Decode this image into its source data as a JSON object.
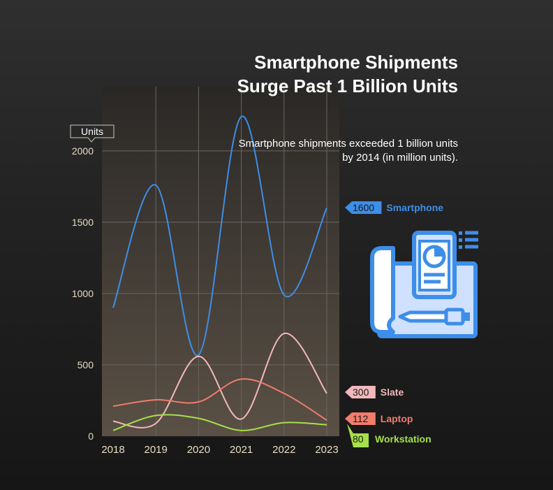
{
  "title": "Smartphone Shipments Surge Past 1 Billion Units",
  "subtitle": "Smartphone shipments exceeded 1 billion units by 2014 (in million units).",
  "illustration_icon": "smartphone-blueprint-icon",
  "colors": {
    "Smartphone": "#3d8ee8",
    "Slate": "#f2b8bb",
    "Laptop": "#f07c6c",
    "Workstation": "#a6e04a",
    "plot_bg_top": "#2a2826",
    "plot_bg_bottom": "#5a5045",
    "axis_text": "#e8dcc0",
    "grid": "#6a6660"
  },
  "chart_data": {
    "type": "line",
    "x": [
      "2018",
      "2019",
      "2020",
      "2021",
      "2022",
      "2023"
    ],
    "ylabel": "Units",
    "ylim": [
      0,
      2000
    ],
    "yticks": [
      0,
      500,
      1000,
      1500,
      2000
    ],
    "grid": true,
    "series": [
      {
        "name": "Smartphone",
        "values": [
          900,
          1760,
          570,
          2240,
          990,
          1600
        ],
        "end_label": "1600"
      },
      {
        "name": "Slate",
        "values": [
          105,
          90,
          560,
          120,
          720,
          300
        ],
        "end_label": "300"
      },
      {
        "name": "Laptop",
        "values": [
          210,
          255,
          240,
          400,
          300,
          112
        ],
        "end_label": "112"
      },
      {
        "name": "Workstation",
        "values": [
          40,
          145,
          125,
          40,
          95,
          80
        ],
        "end_label": "80"
      }
    ]
  }
}
